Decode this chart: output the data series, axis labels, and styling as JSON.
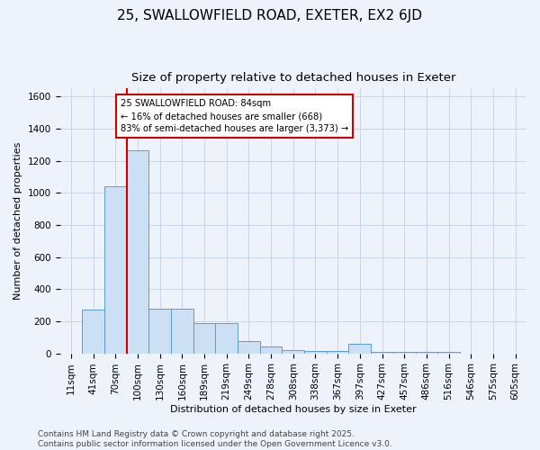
{
  "title1": "25, SWALLOWFIELD ROAD, EXETER, EX2 6JD",
  "title2": "Size of property relative to detached houses in Exeter",
  "xlabel": "Distribution of detached houses by size in Exeter",
  "ylabel": "Number of detached properties",
  "categories": [
    "11sqm",
    "41sqm",
    "70sqm",
    "100sqm",
    "130sqm",
    "160sqm",
    "189sqm",
    "219sqm",
    "249sqm",
    "278sqm",
    "308sqm",
    "338sqm",
    "367sqm",
    "397sqm",
    "427sqm",
    "457sqm",
    "486sqm",
    "516sqm",
    "546sqm",
    "575sqm",
    "605sqm"
  ],
  "values": [
    0,
    275,
    1040,
    1265,
    280,
    280,
    190,
    190,
    75,
    40,
    20,
    15,
    15,
    60,
    10,
    10,
    10,
    10,
    0,
    0,
    0
  ],
  "bar_color": "#cce0f5",
  "bar_edge_color": "#5b9bd5",
  "grid_color": "#c8d4e8",
  "background_color": "#eef2fa",
  "annotation_text": "25 SWALLOWFIELD ROAD: 84sqm\n← 16% of detached houses are smaller (668)\n83% of semi-detached houses are larger (3,373) →",
  "vline_x": 1.5,
  "annotation_box_color": "#ffffff",
  "annotation_box_edge": "#cc0000",
  "vline_color": "#cc0000",
  "ylim": [
    0,
    1650
  ],
  "yticks": [
    0,
    200,
    400,
    600,
    800,
    1000,
    1200,
    1400,
    1600
  ],
  "footer": "Contains HM Land Registry data © Crown copyright and database right 2025.\nContains public sector information licensed under the Open Government Licence v3.0.",
  "title_fontsize": 11,
  "subtitle_fontsize": 9.5,
  "label_fontsize": 8,
  "tick_fontsize": 7.5,
  "footer_fontsize": 6.5
}
